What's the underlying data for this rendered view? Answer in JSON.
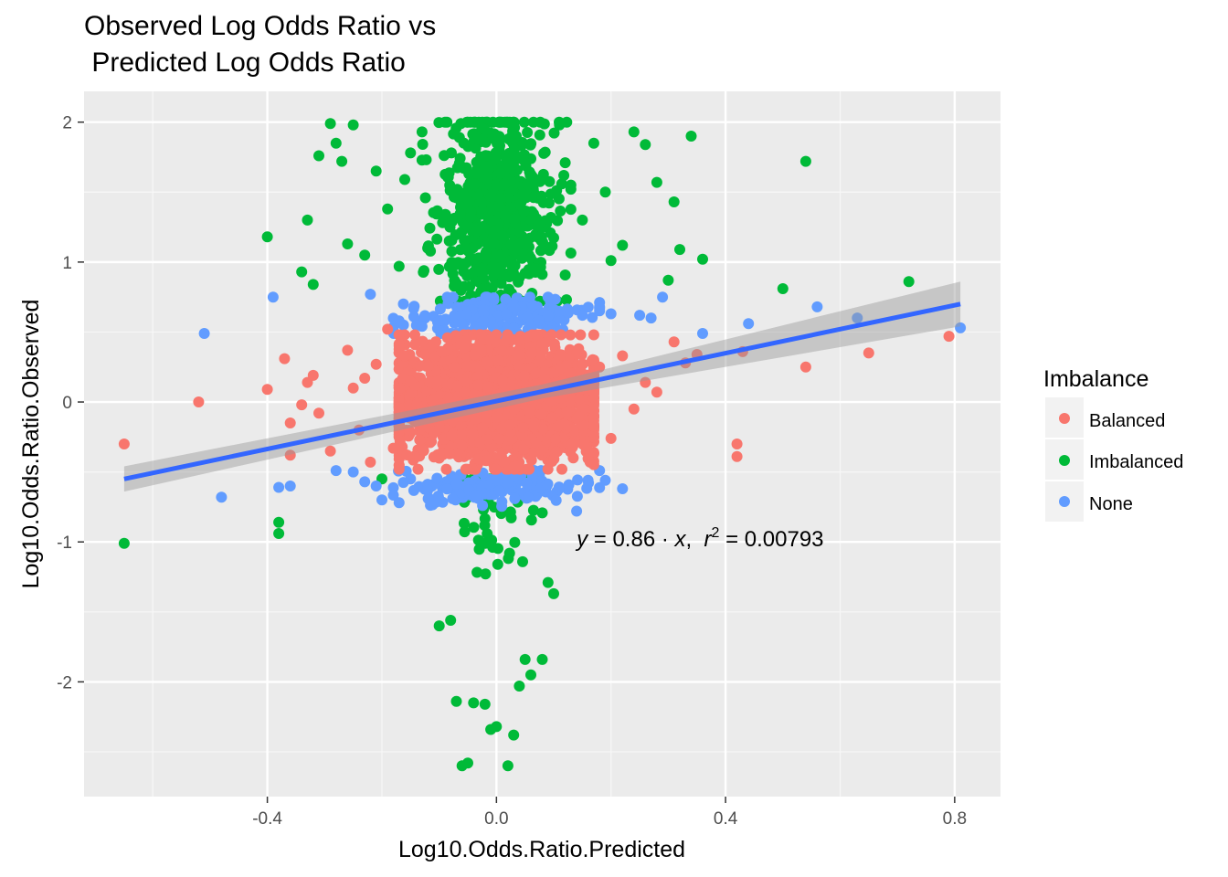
{
  "chart_data": {
    "type": "scatter",
    "title_lines": [
      "Observed Log Odds Ratio vs",
      " Predicted Log Odds Ratio"
    ],
    "xlabel": "Log10.Odds.Ratio.Predicted",
    "ylabel": "Log10.Odds.Ratio.Observed",
    "xlim": [
      -0.72,
      0.88
    ],
    "ylim": [
      -2.82,
      2.22
    ],
    "x_ticks": [
      {
        "value": -0.4,
        "label": "-0.4"
      },
      {
        "value": 0.0,
        "label": "0.0"
      },
      {
        "value": 0.4,
        "label": "0.4"
      },
      {
        "value": 0.8,
        "label": "0.8"
      }
    ],
    "y_ticks": [
      {
        "value": -2,
        "label": "-2"
      },
      {
        "value": -1,
        "label": "-1"
      },
      {
        "value": 0,
        "label": "0"
      },
      {
        "value": 1,
        "label": "1"
      },
      {
        "value": 2,
        "label": "2"
      }
    ],
    "grid": true,
    "legend": {
      "title": "Imbalance",
      "position": "right",
      "entries": [
        {
          "label": "Balanced",
          "color": "#F8766D"
        },
        {
          "label": "Imbalanced",
          "color": "#00BA38"
        },
        {
          "label": "None",
          "color": "#619CFF"
        }
      ]
    },
    "regression": {
      "color": "#3366FF",
      "band_color": "#999999",
      "x_range": [
        -0.65,
        0.81
      ],
      "line_y": [
        -0.55,
        0.7
      ],
      "band_lower": [
        -0.64,
        0.54
      ],
      "band_upper": [
        -0.46,
        0.86
      ]
    },
    "annotation": {
      "x": 0.14,
      "y": -1.03,
      "parts": {
        "y_sym": "y",
        "eq1": " = 0.86 · ",
        "x_sym": "x",
        "comma": ",  ",
        "r_sym": "r",
        "sup": "2",
        "eq2": " = 0.00793"
      }
    },
    "series": [
      {
        "name": "Balanced",
        "color": "#F8766D",
        "points": [
          [
            -0.65,
            -0.3
          ],
          [
            -0.52,
            0.0
          ],
          [
            -0.4,
            0.09
          ],
          [
            -0.37,
            0.31
          ],
          [
            -0.36,
            -0.15
          ],
          [
            -0.36,
            -0.38
          ],
          [
            -0.34,
            -0.02
          ],
          [
            -0.33,
            0.14
          ],
          [
            -0.32,
            0.19
          ],
          [
            -0.31,
            -0.08
          ],
          [
            -0.29,
            -0.35
          ],
          [
            -0.26,
            0.37
          ],
          [
            -0.25,
            0.1
          ],
          [
            -0.24,
            -0.2
          ],
          [
            -0.23,
            0.17
          ],
          [
            -0.22,
            -0.43
          ],
          [
            -0.21,
            0.27
          ],
          [
            -0.19,
            0.52
          ],
          [
            -0.18,
            -0.33
          ],
          [
            -0.17,
            0.4
          ],
          [
            0.18,
            0.25
          ],
          [
            0.2,
            -0.26
          ],
          [
            0.22,
            0.33
          ],
          [
            0.24,
            -0.05
          ],
          [
            0.26,
            0.14
          ],
          [
            0.28,
            0.07
          ],
          [
            0.31,
            0.43
          ],
          [
            0.33,
            0.28
          ],
          [
            0.35,
            0.34
          ],
          [
            0.42,
            -0.3
          ],
          [
            0.42,
            -0.39
          ],
          [
            0.43,
            0.36
          ],
          [
            0.54,
            0.25
          ],
          [
            0.65,
            0.35
          ],
          [
            0.79,
            0.47
          ]
        ],
        "clusters": [
          {
            "cx": 0.0,
            "cy": 0.0,
            "sx": 0.09,
            "sy": 0.2,
            "n": 2400,
            "xr": [
              -0.17,
              0.17
            ],
            "yr": [
              -0.48,
              0.48
            ]
          }
        ]
      },
      {
        "name": "Imbalanced",
        "color": "#00BA38",
        "points": [
          [
            -0.65,
            -1.01
          ],
          [
            -0.4,
            1.18
          ],
          [
            -0.38,
            -0.86
          ],
          [
            -0.38,
            -0.94
          ],
          [
            -0.34,
            0.93
          ],
          [
            -0.33,
            1.3
          ],
          [
            -0.32,
            0.84
          ],
          [
            -0.31,
            1.76
          ],
          [
            -0.29,
            1.99
          ],
          [
            -0.28,
            1.85
          ],
          [
            -0.27,
            1.72
          ],
          [
            -0.26,
            1.13
          ],
          [
            -0.25,
            1.98
          ],
          [
            -0.23,
            1.05
          ],
          [
            -0.21,
            1.65
          ],
          [
            -0.2,
            -0.55
          ],
          [
            -0.19,
            1.38
          ],
          [
            -0.17,
            0.97
          ],
          [
            -0.16,
            1.59
          ],
          [
            -0.15,
            1.78
          ],
          [
            -0.13,
            1.93
          ],
          [
            -0.12,
            1.1
          ],
          [
            -0.1,
            -1.6
          ],
          [
            -0.08,
            -1.56
          ],
          [
            -0.07,
            -2.14
          ],
          [
            -0.06,
            -2.6
          ],
          [
            -0.05,
            -2.58
          ],
          [
            -0.04,
            -2.15
          ],
          [
            -0.02,
            -2.16
          ],
          [
            -0.01,
            -2.34
          ],
          [
            0.0,
            -2.32
          ],
          [
            0.02,
            -2.6
          ],
          [
            0.03,
            -2.38
          ],
          [
            0.04,
            -2.03
          ],
          [
            0.05,
            -1.84
          ],
          [
            0.06,
            -1.95
          ],
          [
            0.08,
            -1.84
          ],
          [
            0.09,
            -1.29
          ],
          [
            0.1,
            -1.37
          ],
          [
            0.11,
            1.98
          ],
          [
            0.12,
            1.71
          ],
          [
            0.13,
            1.55
          ],
          [
            0.15,
            1.3
          ],
          [
            0.17,
            1.85
          ],
          [
            0.19,
            1.5
          ],
          [
            0.2,
            1.01
          ],
          [
            0.22,
            1.12
          ],
          [
            0.24,
            1.93
          ],
          [
            0.26,
            1.84
          ],
          [
            0.28,
            1.57
          ],
          [
            0.3,
            0.87
          ],
          [
            0.31,
            1.43
          ],
          [
            0.32,
            1.09
          ],
          [
            0.34,
            1.9
          ],
          [
            0.36,
            1.02
          ],
          [
            0.5,
            0.81
          ],
          [
            0.54,
            1.72
          ],
          [
            0.72,
            0.86
          ]
        ],
        "clusters": [
          {
            "cx": 0.0,
            "cy": 1.35,
            "sx": 0.05,
            "sy": 0.38,
            "n": 650,
            "xr": [
              -0.13,
              0.13
            ],
            "yr": [
              0.72,
              2.0
            ]
          },
          {
            "cx": -0.01,
            "cy": -0.75,
            "sx": 0.035,
            "sy": 0.25,
            "n": 55,
            "xr": [
              -0.08,
              0.09
            ],
            "yr": [
              -1.7,
              -0.55
            ]
          }
        ]
      },
      {
        "name": "None",
        "color": "#619CFF",
        "points": [
          [
            -0.51,
            0.49
          ],
          [
            -0.48,
            -0.68
          ],
          [
            -0.39,
            0.75
          ],
          [
            -0.38,
            -0.61
          ],
          [
            -0.36,
            -0.6
          ],
          [
            -0.28,
            -0.49
          ],
          [
            -0.25,
            -0.5
          ],
          [
            -0.23,
            -0.57
          ],
          [
            -0.22,
            0.77
          ],
          [
            -0.21,
            -0.6
          ],
          [
            -0.2,
            -0.7
          ],
          [
            -0.17,
            0.58
          ],
          [
            -0.17,
            -0.72
          ],
          [
            -0.15,
            -0.55
          ],
          [
            -0.13,
            0.54
          ],
          [
            -0.12,
            -0.63
          ],
          [
            0.15,
            0.62
          ],
          [
            0.16,
            -0.56
          ],
          [
            0.18,
            0.68
          ],
          [
            0.19,
            -0.56
          ],
          [
            0.2,
            0.63
          ],
          [
            0.22,
            -0.62
          ],
          [
            0.25,
            0.62
          ],
          [
            0.27,
            0.6
          ],
          [
            0.29,
            0.75
          ],
          [
            0.36,
            0.49
          ],
          [
            0.44,
            0.56
          ],
          [
            0.56,
            0.68
          ],
          [
            0.63,
            0.6
          ],
          [
            0.81,
            0.53
          ],
          [
            0.14,
            -0.78
          ]
        ],
        "clusters": [
          {
            "cx": 0.0,
            "cy": 0.61,
            "sx": 0.08,
            "sy": 0.07,
            "n": 190,
            "xr": [
              -0.18,
              0.18
            ],
            "yr": [
              0.49,
              0.75
            ]
          },
          {
            "cx": 0.0,
            "cy": -0.61,
            "sx": 0.08,
            "sy": 0.07,
            "n": 150,
            "xr": [
              -0.18,
              0.18
            ],
            "yr": [
              -0.76,
              -0.49
            ]
          }
        ]
      }
    ]
  }
}
